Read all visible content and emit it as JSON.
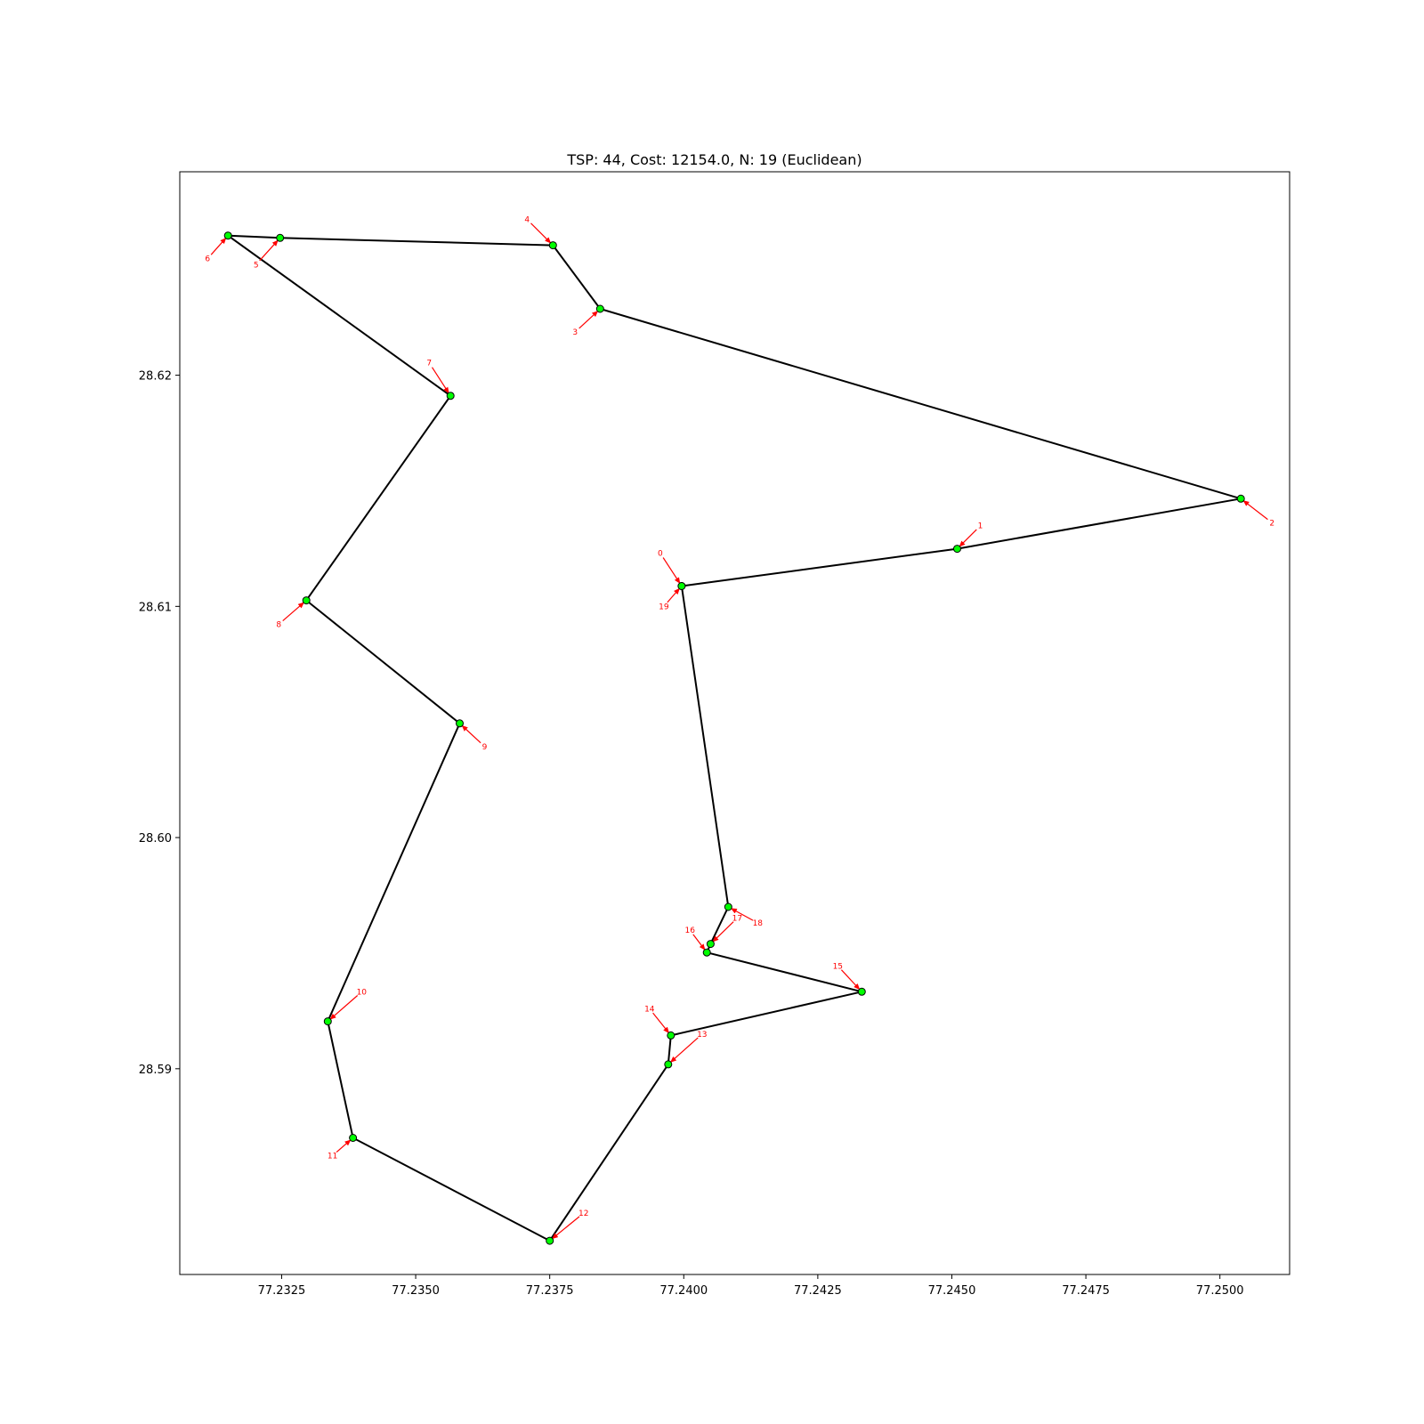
{
  "chart_data": {
    "type": "scatter",
    "title": "TSP: 44, Cost: 12154.0, N: 19 (Euclidean)",
    "xlabel": "",
    "ylabel": "",
    "xlim": [
      77.2306,
      77.2513
    ],
    "ylim": [
      28.5811,
      28.6288
    ],
    "x_ticks": [
      77.2325,
      77.235,
      77.2375,
      77.24,
      77.2425,
      77.245,
      77.2475,
      77.25
    ],
    "x_tick_labels": [
      "77.2325",
      "77.2350",
      "77.2375",
      "77.2400",
      "77.2425",
      "77.2450",
      "77.2475",
      "77.2500"
    ],
    "y_ticks": [
      28.59,
      28.6,
      28.61,
      28.62
    ],
    "y_tick_labels": [
      "28.59",
      "28.60",
      "28.61",
      "28.62"
    ],
    "grid": false,
    "route": [
      {
        "label": "0",
        "x": 77.23996,
        "y": 28.61088,
        "ldx": -24,
        "ldy": -37
      },
      {
        "label": "1",
        "x": 77.2451,
        "y": 28.61249,
        "ldx": 26,
        "ldy": -26
      },
      {
        "label": "2",
        "x": 77.25039,
        "y": 28.61466,
        "ldx": 35,
        "ldy": 27
      },
      {
        "label": "3",
        "x": 77.23844,
        "y": 28.62287,
        "ldx": -28,
        "ldy": 26
      },
      {
        "label": "4",
        "x": 77.23756,
        "y": 28.62562,
        "ldx": -29,
        "ldy": -29
      },
      {
        "label": "5",
        "x": 77.23247,
        "y": 28.62594,
        "ldx": -27,
        "ldy": 30
      },
      {
        "label": "6",
        "x": 77.2315,
        "y": 28.62604,
        "ldx": -23,
        "ldy": 26
      },
      {
        "label": "7",
        "x": 77.23565,
        "y": 28.61911,
        "ldx": -24,
        "ldy": -37
      },
      {
        "label": "8",
        "x": 77.23296,
        "y": 28.61026,
        "ldx": -31,
        "ldy": 27
      },
      {
        "label": "9",
        "x": 77.23582,
        "y": 28.60494,
        "ldx": 28,
        "ldy": 26
      },
      {
        "label": "10",
        "x": 77.23336,
        "y": 28.59205,
        "ldx": 38,
        "ldy": -33
      },
      {
        "label": "11",
        "x": 77.23383,
        "y": 28.58701,
        "ldx": -23,
        "ldy": 20
      },
      {
        "label": "12",
        "x": 77.2375,
        "y": 28.58256,
        "ldx": 38,
        "ldy": -31
      },
      {
        "label": "13",
        "x": 77.23971,
        "y": 28.59019,
        "ldx": 38,
        "ldy": -34
      },
      {
        "label": "14",
        "x": 77.23976,
        "y": 28.59144,
        "ldx": -24,
        "ldy": -30
      },
      {
        "label": "15",
        "x": 77.24332,
        "y": 28.59333,
        "ldx": -27,
        "ldy": -29
      },
      {
        "label": "16",
        "x": 77.24043,
        "y": 28.59503,
        "ldx": -19,
        "ldy": -25
      },
      {
        "label": "17",
        "x": 77.2405,
        "y": 28.5954,
        "ldx": 30,
        "ldy": -29
      },
      {
        "label": "18",
        "x": 77.24083,
        "y": 28.597,
        "ldx": 33,
        "ldy": 18
      },
      {
        "label": "19",
        "x": 77.23996,
        "y": 28.61088,
        "ldx": -20,
        "ldy": 23
      }
    ],
    "colors": {
      "line": "#000000",
      "marker_fill": "#00ff00",
      "marker_edge": "#000000",
      "annotation": "#ff0000"
    }
  }
}
